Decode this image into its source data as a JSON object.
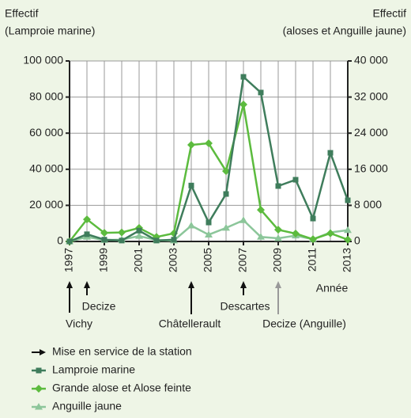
{
  "chart_data": {
    "type": "line",
    "y_title": [
      "Effectif",
      "(Lamproie marine)"
    ],
    "y2_title": [
      "Effectif",
      "(aloses et Anguille jaune)"
    ],
    "x_title": "Année",
    "x": [
      1997,
      1998,
      1999,
      2000,
      2001,
      2002,
      2003,
      2004,
      2005,
      2006,
      2007,
      2008,
      2009,
      2010,
      2011,
      2012,
      2013
    ],
    "xlim": [
      1997,
      2013
    ],
    "xticks": [
      1997,
      1999,
      2001,
      2003,
      2005,
      2007,
      2009,
      2011,
      2013
    ],
    "ylim": [
      0,
      100000
    ],
    "yticks": [
      0,
      {
        "value": 20000,
        "label": "20 000"
      },
      {
        "value": 40000,
        "label": "40 000"
      },
      {
        "value": 60000,
        "label": "60 000"
      },
      {
        "value": 80000,
        "label": "80 000"
      },
      {
        "value": 100000,
        "label": "100 000"
      }
    ],
    "y2lim": [
      0,
      40000
    ],
    "y2ticks": [
      0,
      {
        "value": 8000,
        "label": "8 000"
      },
      {
        "value": 16000,
        "label": "16 000"
      },
      {
        "value": 24000,
        "label": "24 000"
      },
      {
        "value": 32000,
        "label": "32 000"
      },
      {
        "value": 40000,
        "label": "40 000"
      }
    ],
    "grid": true,
    "series": [
      {
        "name": "Lamproie marine",
        "color": "#3f7d5c",
        "marker": "square",
        "values": [
          0,
          4000,
          1000,
          500,
          6000,
          500,
          1000,
          31000,
          10500,
          26300,
          91200,
          82500,
          30700,
          34200,
          12700,
          49100,
          22800
        ]
      },
      {
        "name": "Grande alose et Alose feinte",
        "color": "#5cbb3e",
        "marker": "diamond",
        "axis": "y2",
        "values": [
          0,
          4900,
          1900,
          2000,
          3000,
          1000,
          1800,
          21400,
          21750,
          15600,
          30350,
          7000,
          2600,
          1750,
          500,
          1800,
          400
        ]
      },
      {
        "name": "Anguille jaune",
        "color": "#8cc69a",
        "marker": "triangle",
        "axis": "y2",
        "values": [
          0,
          1000,
          300,
          400,
          1200,
          300,
          200,
          3500,
          1500,
          3000,
          4700,
          1000,
          700,
          1300,
          500,
          2000,
          2500
        ]
      }
    ],
    "arrow_legend": "Mise en service de la station",
    "annotations": [
      {
        "x": 1997,
        "label": "Vichy",
        "color": "#111"
      },
      {
        "x": 1998,
        "label": "Decize",
        "color": "#111"
      },
      {
        "x": 2004,
        "label": "Châtellerault",
        "color": "#111"
      },
      {
        "x": 2007,
        "label": "Descartes",
        "color": "#111"
      },
      {
        "x": 2009,
        "label": "Decize (Anguille)",
        "color": "#999"
      }
    ]
  }
}
